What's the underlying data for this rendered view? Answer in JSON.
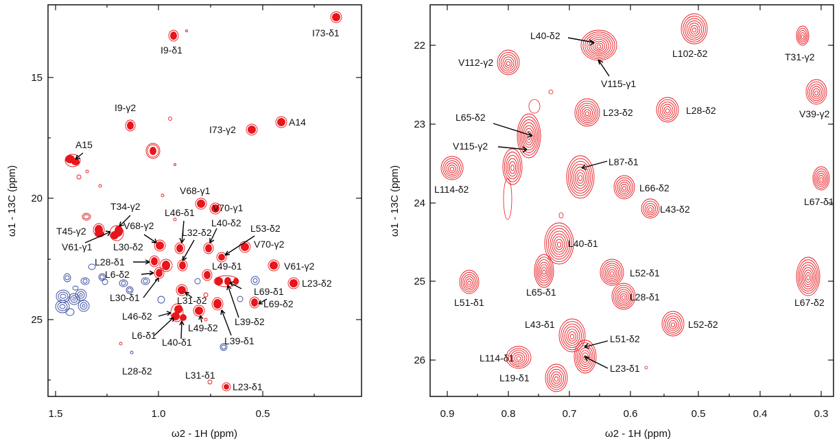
{
  "panels": [
    {
      "id": "left",
      "x_axis_label": "ω2 - 1H  (ppm)",
      "y_axis_label": "ω1 - 13C  (ppm)",
      "x_ticks": [
        "1.5",
        "1.0",
        "0.5"
      ],
      "y_ticks": [
        "15",
        "20",
        "25"
      ],
      "peak_labels": [
        "I73-δ1",
        "I9-δ1",
        "I9-γ2",
        "I73-γ2",
        "A14",
        "A15",
        "V68-γ1",
        "V70-γ1",
        "T34-γ2",
        "L46-δ1",
        "L40-δ2",
        "L53-δ2",
        "V68-γ2",
        "L32-δ2",
        "V70-γ2",
        "T45-γ2",
        "L30-δ2",
        "V61-γ1",
        "L49-δ1",
        "V61-γ2",
        "L28-δ1",
        "L6-δ2",
        "L23-δ2",
        "L69-δ1",
        "L30-δ1",
        "L31-δ2",
        "L69-δ2",
        "L39-δ2",
        "L46-δ2",
        "L49-δ2",
        "L39-δ1",
        "L6-δ1",
        "L40-δ1",
        "L28-δ2",
        "L31-δ1",
        "L23-δ1"
      ]
    },
    {
      "id": "right",
      "x_axis_label": "ω2 - 1H  (ppm)",
      "y_axis_label": "ω1 - 13C  (ppm)",
      "x_ticks": [
        "0.9",
        "0.8",
        "0.7",
        "0.6",
        "0.5",
        "0.4",
        "0.3"
      ],
      "y_ticks": [
        "22",
        "23",
        "24",
        "25",
        "26"
      ],
      "peak_labels": [
        "L40-δ2",
        "L102-δ2",
        "T31-γ2",
        "V112-γ2",
        "V115-γ1",
        "L23-δ2",
        "L28-δ2",
        "V39-γ2",
        "L65-δ2",
        "V115-γ2",
        "L87-δ1",
        "L114-δ2",
        "L66-δ2",
        "L67-δ1",
        "L43-δ2",
        "L40-δ1",
        "L52-δ1",
        "L51-δ1",
        "L65-δ1",
        "L28-δ1",
        "L67-δ2",
        "L52-δ2",
        "L43-δ1",
        "L51-δ2",
        "L114-δ1",
        "L23-δ1",
        "L19-δ1"
      ]
    }
  ],
  "colors": {
    "positive": "#e8151b",
    "negative": "#3446a0"
  }
}
